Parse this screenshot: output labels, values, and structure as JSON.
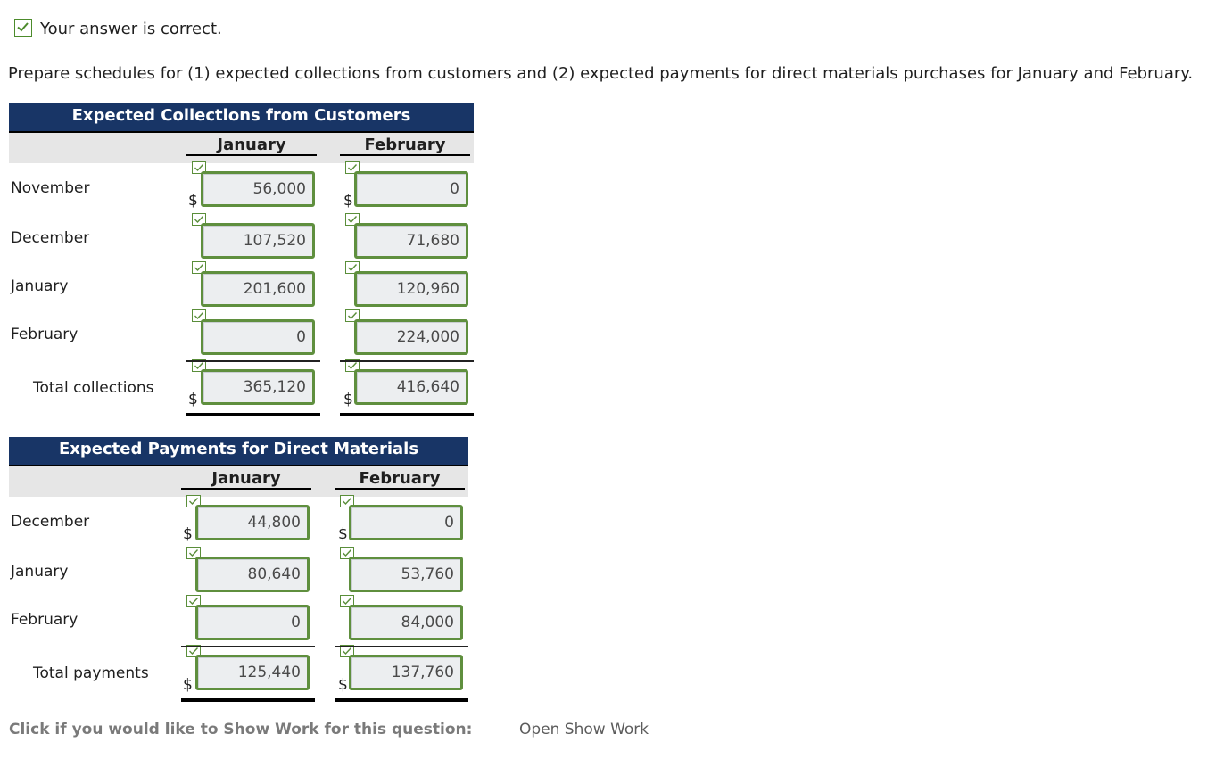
{
  "status": {
    "text": "Your answer is correct.",
    "icon": "check-icon"
  },
  "instructions": "Prepare schedules for (1) expected collections from customers and (2) expected payments for direct materials purchases for January and February.",
  "collections": {
    "title": "Expected Collections from Customers",
    "columns": [
      "January",
      "February"
    ],
    "rows": [
      {
        "label": "November",
        "jan": "56,000",
        "feb": "0"
      },
      {
        "label": "December",
        "jan": "107,520",
        "feb": "71,680"
      },
      {
        "label": "January",
        "jan": "201,600",
        "feb": "120,960"
      },
      {
        "label": "February",
        "jan": "0",
        "feb": "224,000"
      }
    ],
    "total": {
      "label": "Total collections",
      "jan": "365,120",
      "feb": "416,640"
    }
  },
  "payments": {
    "title": "Expected Payments for Direct Materials",
    "columns": [
      "January",
      "February"
    ],
    "rows": [
      {
        "label": "December",
        "jan": "44,800",
        "feb": "0"
      },
      {
        "label": "January",
        "jan": "80,640",
        "feb": "53,760"
      },
      {
        "label": "February",
        "jan": "0",
        "feb": "84,000"
      }
    ],
    "total": {
      "label": "Total payments",
      "jan": "125,440",
      "feb": "137,760"
    }
  },
  "currency_symbol": "$",
  "show_work": {
    "label": "Click if you would like to Show Work for this question:",
    "link": "Open Show Work"
  },
  "colors": {
    "header_bg": "#183566",
    "correct_green": "#5f8f3e",
    "field_bg": "#eceef0"
  }
}
